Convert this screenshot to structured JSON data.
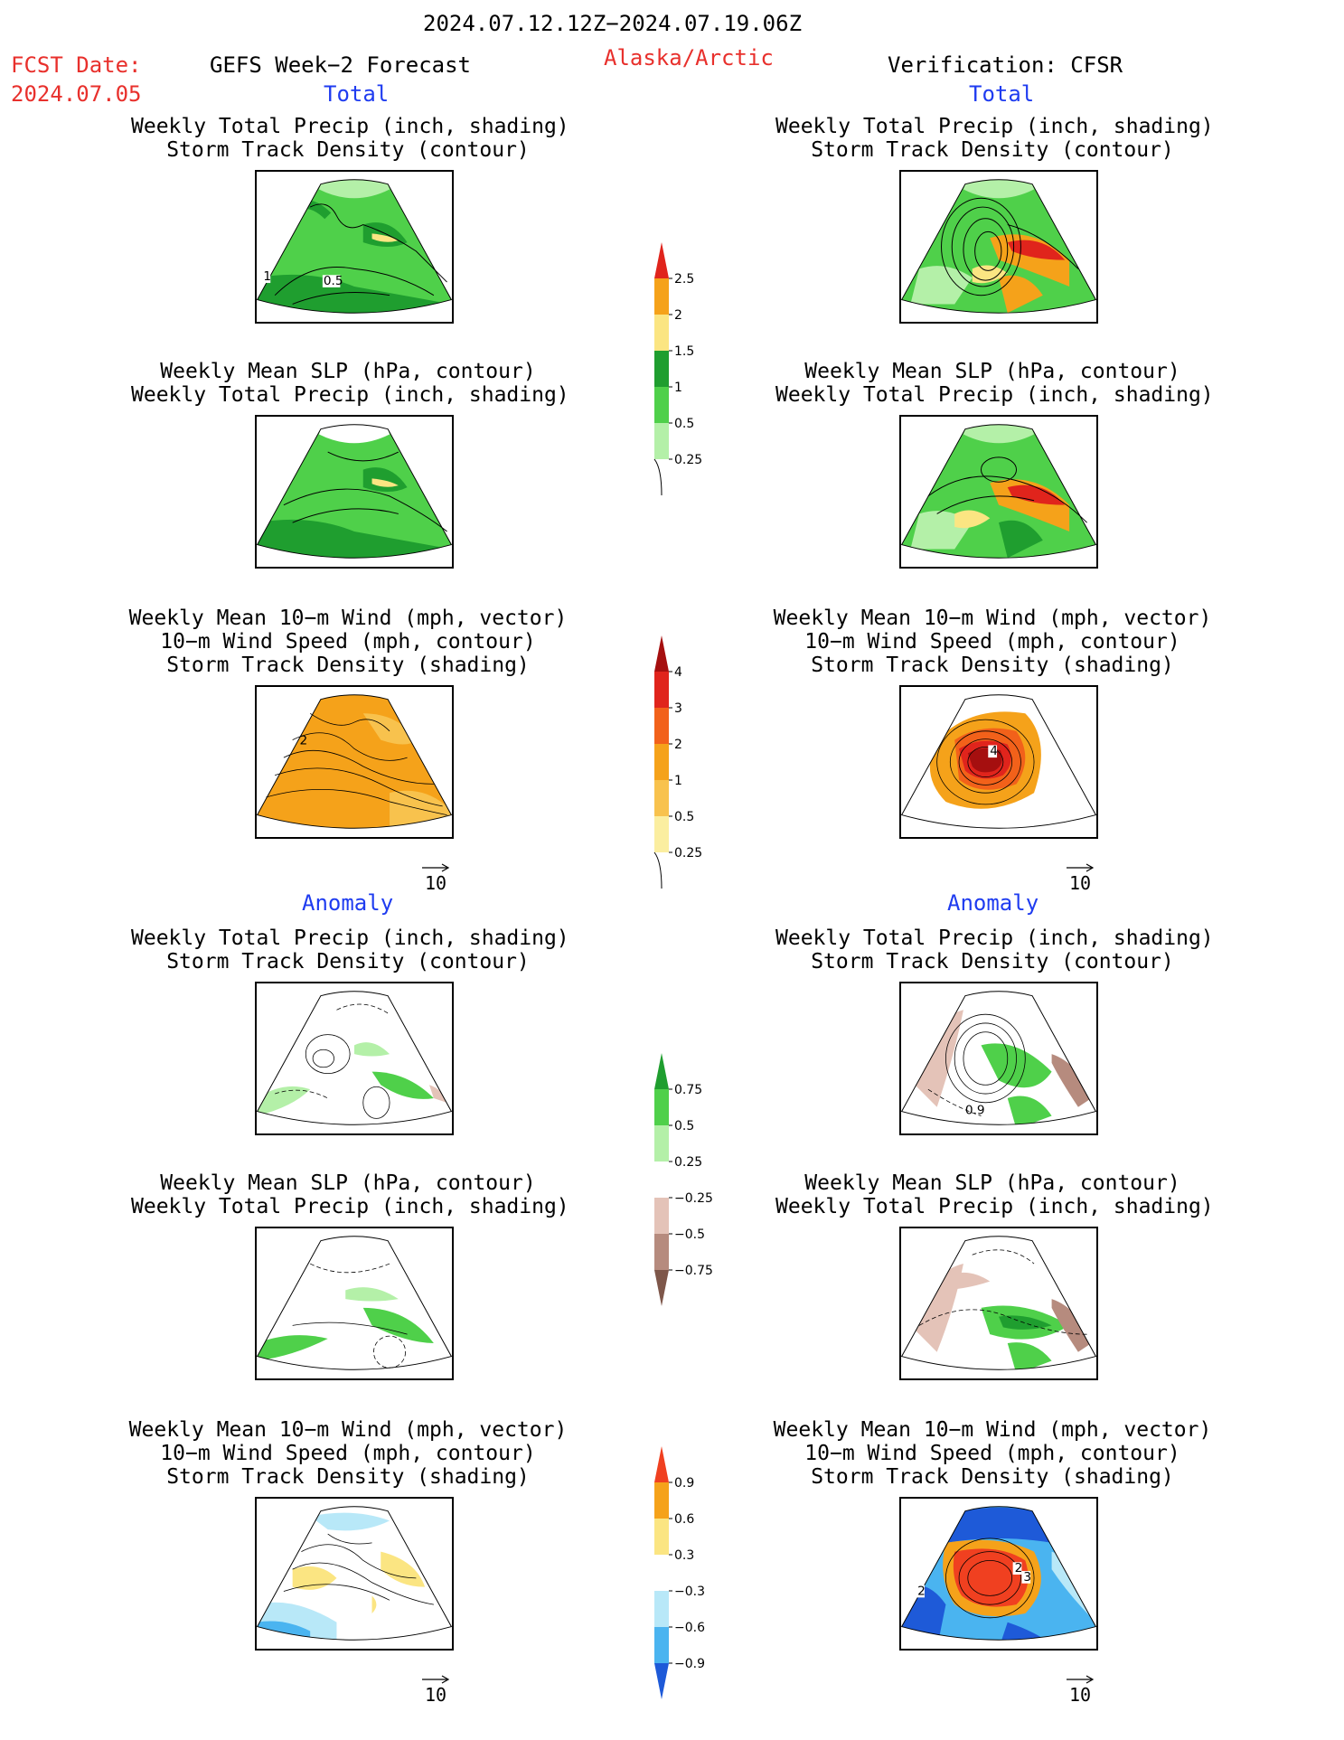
{
  "header": {
    "period": "2024.07.12.12Z−2024.07.19.06Z",
    "fcst_label": "FCST Date:",
    "fcst_date": "2024.07.05",
    "forecast_title": "GEFS Week−2 Forecast",
    "region": "Alaska/Arctic",
    "verification": "Verification: CFSR"
  },
  "sections": {
    "total_left": "Total",
    "total_right": "Total",
    "anomaly_left": "Anomaly",
    "anomaly_right": "Anomaly"
  },
  "titles": {
    "precip_track_l1": "Weekly Total Precip (inch, shading)",
    "precip_track_l2": "Storm Track Density (contour)",
    "slp_l1": "Weekly Mean SLP (hPa, contour)",
    "slp_l2": "Weekly Total Precip (inch, shading)",
    "wind_l1": "Weekly Mean 10−m Wind (mph, vector)",
    "wind_l2": "10−m Wind Speed (mph, contour)",
    "wind_l3": "Storm Track Density (shading)"
  },
  "vector_scale": "10",
  "colorbars": {
    "precip_total": {
      "labels": [
        "2.5",
        "2",
        "1.5",
        "1",
        "0.5",
        "0.25"
      ],
      "colors": [
        "#e0241c",
        "#f5a21a",
        "#fbe582",
        "#1f9e2f",
        "#4fd04a",
        "#b4f0a8"
      ]
    },
    "density_total": {
      "labels": [
        "4",
        "3",
        "2",
        "1",
        "0.5",
        "0.25"
      ],
      "colors": [
        "#a50f0f",
        "#e0241c",
        "#f2611a",
        "#f5a21a",
        "#f8c24d",
        "#fbeea0"
      ]
    },
    "precip_anom": {
      "labels": [
        "0.75",
        "0.5",
        "0.25",
        "−0.25",
        "−0.5",
        "−0.75"
      ],
      "colors": [
        "#1f9e2f",
        "#4fd04a",
        "#b4f0a8",
        "#ffffff",
        "#e4c3b8",
        "#b68b7e",
        "#7e574a"
      ]
    },
    "density_anom": {
      "labels": [
        "0.9",
        "0.6",
        "0.3",
        "−0.3",
        "−0.6",
        "−0.9"
      ],
      "colors": [
        "#f04020",
        "#f5a21a",
        "#fbe582",
        "#ffffff",
        "#b8e8f8",
        "#4ab4f0",
        "#1e5ad8"
      ]
    }
  },
  "map_labels": {
    "l1_a": "1",
    "l1_b": "0.5",
    "l3_a": "2",
    "r3_a": "4",
    "r4_a": "0.9",
    "r6_a": "2",
    "r6_b": "2",
    "r6_c": "3"
  }
}
